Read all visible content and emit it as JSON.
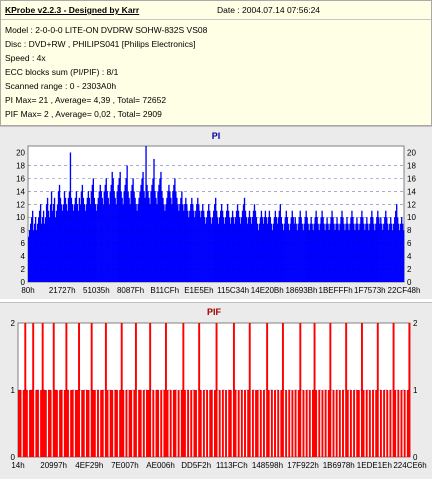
{
  "info": {
    "title": "KProbe v2.2.3 - Designed by Karr",
    "date": "Date : 2004.07.14 07:56:24",
    "lines": [
      "Model : 2-0-0-0 LITE-ON DVDRW SOHW-832S  VS08",
      "Disc : DVD+RW , PHILIPS041 [Philips Electronics]",
      "Speed : 4x",
      "ECC blocks sum (PI/PIF) : 8/1",
      "Scanned range : 0 - 2303A0h",
      "PI Max= 21 , Average= 4,39 , Total= 72652",
      "PIF Max= 2 , Average= 0,02 , Total= 2909"
    ]
  },
  "colors": {
    "pi": "#0000ff",
    "pif": "#ff0000",
    "background": "#ffffff",
    "panel": "#ebebeb",
    "title_pi": "#0000a0",
    "title_pif": "#a00000"
  },
  "chart_data": [
    {
      "type": "bar",
      "title": "PI",
      "color": "#0000ff",
      "ylim": [
        0,
        21
      ],
      "yticks": [
        0,
        2,
        4,
        6,
        8,
        10,
        12,
        14,
        16,
        18,
        20
      ],
      "xticks": [
        "80h",
        "21727h",
        "51035h",
        "8087Fh",
        "B11CFh",
        "E1E5Eh",
        "115C34h",
        "14E20Bh",
        "18693Bh",
        "1BEFFFh",
        "1F7573h",
        "22CF48h"
      ],
      "grid": true,
      "values": [
        7,
        8,
        9,
        10,
        11,
        8,
        9,
        10,
        8,
        9,
        10,
        11,
        12,
        9,
        10,
        11,
        9,
        10,
        12,
        13,
        11,
        10,
        12,
        14,
        11,
        12,
        13,
        10,
        11,
        12,
        14,
        15,
        13,
        12,
        11,
        12,
        14,
        13,
        12,
        11,
        13,
        14,
        20,
        13,
        12,
        11,
        12,
        13,
        14,
        12,
        11,
        13,
        12,
        14,
        15,
        13,
        12,
        11,
        12,
        13,
        14,
        13,
        12,
        14,
        15,
        16,
        13,
        12,
        11,
        12,
        13,
        14,
        15,
        14,
        13,
        12,
        14,
        15,
        16,
        14,
        13,
        12,
        14,
        15,
        17,
        16,
        14,
        13,
        12,
        14,
        15,
        16,
        17,
        14,
        13,
        12,
        14,
        15,
        16,
        18,
        14,
        13,
        12,
        14,
        15,
        16,
        14,
        13,
        12,
        11,
        12,
        13,
        14,
        15,
        16,
        17,
        14,
        13,
        21,
        15,
        14,
        13,
        12,
        14,
        15,
        16,
        19,
        14,
        13,
        12,
        14,
        15,
        16,
        17,
        14,
        13,
        12,
        11,
        12,
        13,
        14,
        15,
        14,
        13,
        12,
        14,
        15,
        16,
        14,
        13,
        12,
        11,
        12,
        13,
        14,
        12,
        11,
        12,
        13,
        12,
        11,
        10,
        11,
        12,
        13,
        12,
        11,
        10,
        11,
        12,
        13,
        12,
        11,
        10,
        11,
        12,
        11,
        10,
        9,
        10,
        11,
        12,
        11,
        10,
        9,
        10,
        11,
        12,
        13,
        11,
        10,
        9,
        10,
        11,
        12,
        11,
        10,
        9,
        10,
        11,
        12,
        11,
        10,
        9,
        10,
        11,
        10,
        9,
        10,
        11,
        12,
        11,
        10,
        9,
        10,
        11,
        12,
        13,
        11,
        10,
        9,
        10,
        11,
        10,
        9,
        10,
        11,
        12,
        11,
        10,
        9,
        8,
        9,
        10,
        11,
        10,
        9,
        10,
        11,
        10,
        9,
        10,
        11,
        10,
        9,
        8,
        9,
        10,
        11,
        10,
        9,
        10,
        11,
        12,
        10,
        9,
        8,
        9,
        10,
        11,
        10,
        9,
        8,
        9,
        10,
        11,
        10,
        9,
        10,
        9,
        8,
        9,
        10,
        11,
        10,
        9,
        8,
        9,
        10,
        11,
        10,
        9,
        8,
        9,
        10,
        9,
        8,
        9,
        10,
        11,
        10,
        9,
        8,
        9,
        10,
        11,
        10,
        9,
        8,
        9,
        10,
        9,
        8,
        9,
        10,
        11,
        10,
        9,
        8,
        9,
        10,
        9,
        8,
        9,
        10,
        11,
        10,
        9,
        8,
        9,
        10,
        9,
        8,
        9,
        10,
        11,
        10,
        9,
        8,
        9,
        10,
        9,
        8,
        9,
        10,
        11,
        10,
        9,
        8,
        9,
        10,
        9,
        8,
        9,
        10,
        11,
        10,
        9,
        8,
        9,
        10,
        11,
        10,
        9,
        10,
        9,
        8,
        9,
        10,
        11,
        10,
        9,
        8,
        9,
        10,
        9,
        8,
        9,
        10,
        11,
        12,
        10,
        9,
        8,
        9,
        10,
        9,
        8
      ]
    },
    {
      "type": "bar",
      "title": "PIF",
      "color": "#ff0000",
      "ylim": [
        0,
        2
      ],
      "yticks": [
        0,
        1,
        2
      ],
      "xticks": [
        "14h",
        "20997h",
        "4EF29h",
        "7E007h",
        "AE006h",
        "DD5F2h",
        "1113FCh",
        "148598h",
        "17F922h",
        "1B6978h",
        "1EDE1Eh",
        "224CE6h"
      ],
      "grid": true,
      "values": [
        1,
        1,
        0,
        1,
        2,
        1,
        0,
        1,
        1,
        2,
        0,
        1,
        1,
        0,
        1,
        2,
        1,
        1,
        0,
        1,
        1,
        0,
        2,
        1,
        1,
        0,
        1,
        1,
        0,
        1,
        2,
        1,
        0,
        1,
        1,
        0,
        1,
        1,
        2,
        0,
        1,
        1,
        0,
        1,
        1,
        0,
        2,
        1,
        1,
        0,
        1,
        0,
        1,
        1,
        0,
        2,
        1,
        0,
        1,
        1,
        0,
        1,
        1,
        0,
        1,
        2,
        1,
        0,
        1,
        0,
        1,
        1,
        0,
        1,
        2,
        0,
        1,
        1,
        0,
        1,
        0,
        1,
        1,
        2,
        0,
        1,
        0,
        1,
        1,
        0,
        1,
        0,
        1,
        2,
        1,
        0,
        1,
        0,
        1,
        1,
        0,
        1,
        0,
        1,
        2,
        1,
        0,
        1,
        0,
        1,
        0,
        1,
        1,
        0,
        2,
        1,
        0,
        1,
        0,
        1,
        0,
        1,
        1,
        0,
        1,
        2,
        0,
        1,
        0,
        1,
        0,
        1,
        0,
        1,
        1,
        0,
        2,
        1,
        0,
        1,
        0,
        1,
        0,
        1,
        0,
        1,
        2,
        0,
        1,
        0,
        1,
        1,
        0,
        1,
        0,
        1,
        0,
        2,
        1,
        0,
        1,
        0,
        1,
        0,
        1,
        0,
        1,
        2,
        0,
        1,
        0,
        1,
        0,
        1,
        0,
        1,
        0,
        1,
        2,
        0,
        1,
        0,
        1,
        0,
        1,
        0,
        1,
        2,
        1,
        0,
        1,
        0,
        1,
        0,
        1,
        0,
        1,
        2,
        0,
        1,
        0,
        1,
        0,
        1,
        0,
        1,
        0,
        2,
        1,
        0,
        1,
        0,
        1,
        0,
        1,
        1,
        0,
        2,
        1,
        0,
        1,
        0,
        1,
        0,
        1,
        0,
        1,
        2,
        0,
        1,
        0,
        1,
        0,
        1,
        0,
        1,
        0,
        2,
        1,
        0,
        1,
        0,
        1,
        0,
        1,
        0,
        1,
        2
      ]
    }
  ]
}
